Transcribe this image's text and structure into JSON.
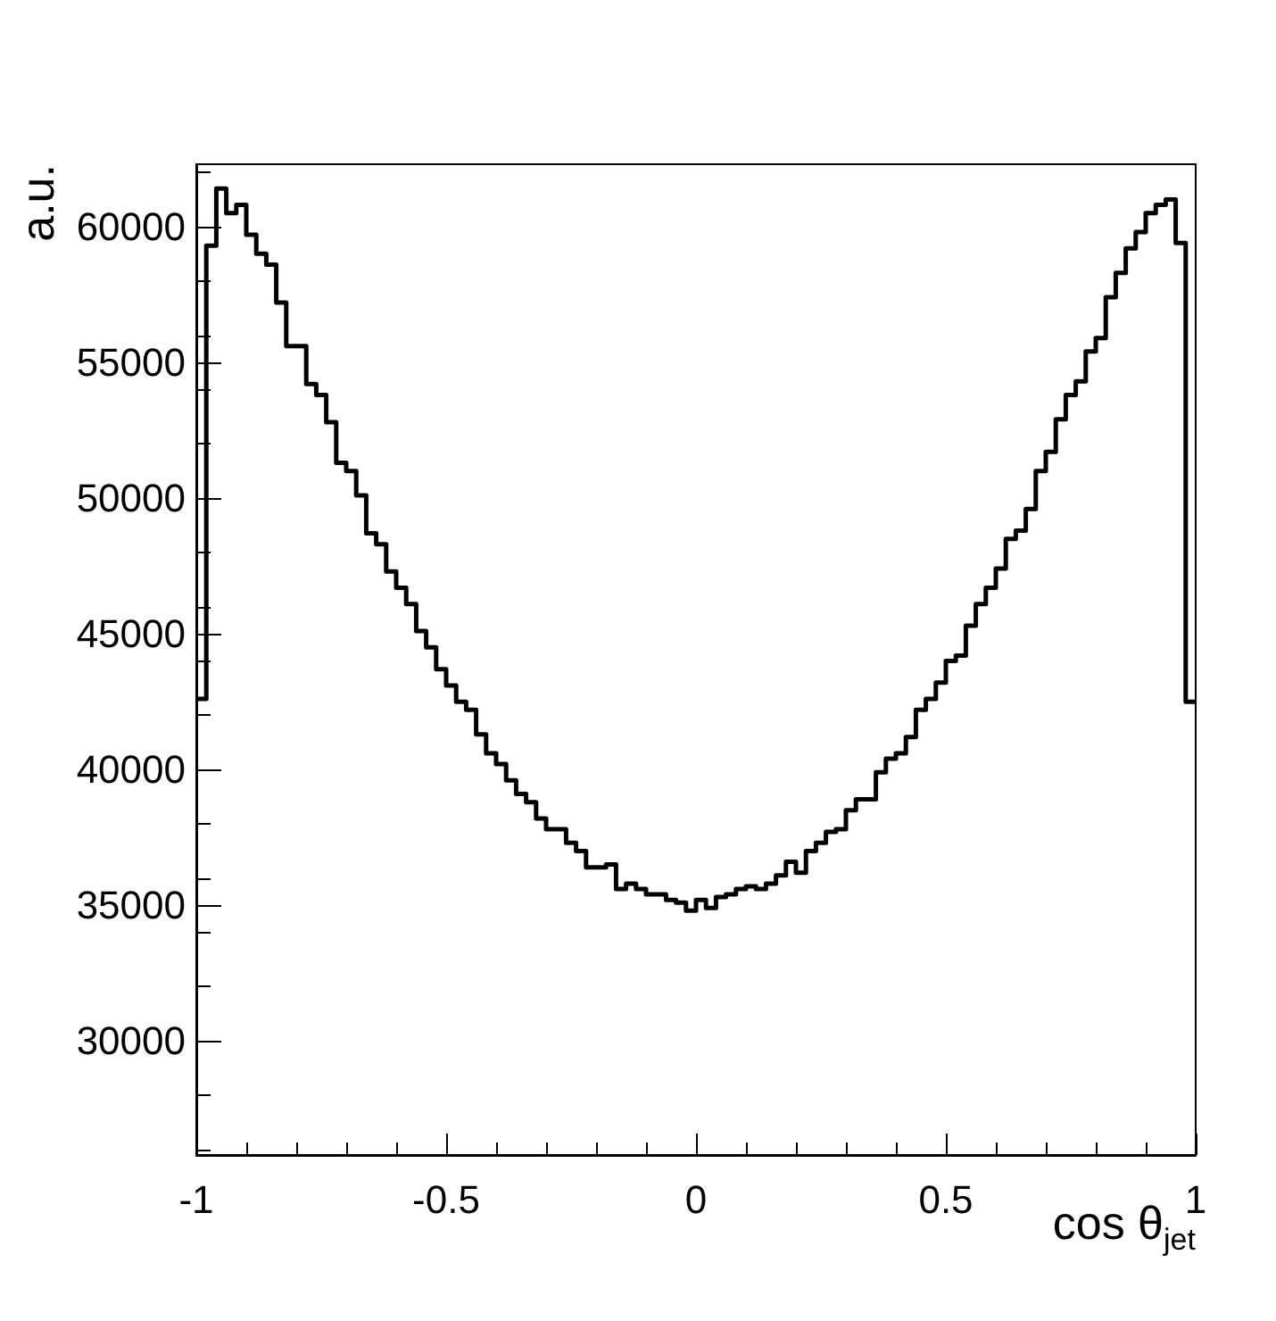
{
  "chart_data": {
    "type": "histogram",
    "xlabel": "cos θ$_{jet}$",
    "ylabel": "a.u.",
    "color": "#000000",
    "bins": [
      -1,
      -0.98,
      -0.96,
      -0.94,
      -0.92,
      -0.9,
      -0.88,
      -0.86,
      -0.84,
      -0.82,
      -0.8,
      -0.78,
      -0.76,
      -0.74,
      -0.72,
      -0.7,
      -0.68,
      -0.66,
      -0.64,
      -0.62,
      -0.6,
      -0.58,
      -0.56,
      -0.54,
      -0.52,
      -0.5,
      -0.48,
      -0.46,
      -0.44,
      -0.42,
      -0.4,
      -0.38,
      -0.36,
      -0.34,
      -0.32,
      -0.3,
      -0.28,
      -0.26,
      -0.24,
      -0.22,
      -0.2,
      -0.18,
      -0.16,
      -0.14,
      -0.12,
      -0.1,
      -0.08,
      -0.06,
      -0.04,
      -0.02,
      0,
      0.02,
      0.04,
      0.06,
      0.08,
      0.1,
      0.12,
      0.14,
      0.16,
      0.18,
      0.2,
      0.22,
      0.24,
      0.26,
      0.28,
      0.3,
      0.32,
      0.34,
      0.36,
      0.38,
      0.4,
      0.42,
      0.44,
      0.46,
      0.48,
      0.5,
      0.52,
      0.54,
      0.56,
      0.58,
      0.6,
      0.62,
      0.64,
      0.66,
      0.68,
      0.7,
      0.72,
      0.74,
      0.76,
      0.78,
      0.8,
      0.82,
      0.84,
      0.86,
      0.88,
      0.9,
      0.92,
      0.94,
      0.96,
      0.98,
      1
    ],
    "values": [
      42600,
      59300,
      61400,
      60500,
      60800,
      59700,
      59000,
      58600,
      57200,
      55600,
      55600,
      54200,
      53800,
      52800,
      51300,
      51000,
      50100,
      48700,
      48300,
      47300,
      46700,
      46100,
      45100,
      44500,
      43700,
      43100,
      42500,
      42200,
      41300,
      40600,
      40200,
      39600,
      39100,
      38800,
      38200,
      37800,
      37800,
      37300,
      37000,
      36400,
      36400,
      36500,
      35600,
      35800,
      35600,
      35400,
      35400,
      35200,
      35100,
      34800,
      35200,
      34900,
      35300,
      35400,
      35600,
      35700,
      35600,
      35800,
      36100,
      36600,
      36200,
      37000,
      37300,
      37700,
      37800,
      38500,
      38900,
      38900,
      39900,
      40400,
      40600,
      41200,
      42200,
      42600,
      43200,
      44000,
      44200,
      45300,
      46100,
      46700,
      47400,
      48500,
      48800,
      49600,
      51000,
      51700,
      52900,
      53800,
      54300,
      55400,
      55900,
      57400,
      58300,
      59200,
      59800,
      60500,
      60800,
      61000,
      59400,
      42500
    ],
    "xlim": [
      -1,
      1
    ],
    "xticks": [
      -1,
      -0.5,
      0,
      0.5,
      1
    ],
    "ylim": [
      25800,
      62300
    ],
    "yticks": [
      30000,
      35000,
      40000,
      45000,
      50000,
      55000,
      60000
    ],
    "grid": false
  }
}
